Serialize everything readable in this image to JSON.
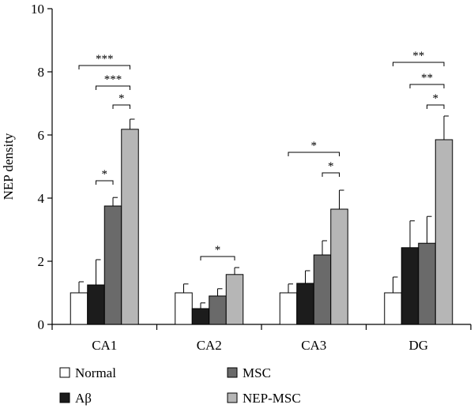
{
  "chart_data": {
    "type": "bar",
    "ylabel": "NEP density",
    "ylim": [
      0,
      10
    ],
    "yticks": [
      0,
      2,
      4,
      6,
      8,
      10
    ],
    "categories": [
      "CA1",
      "CA2",
      "CA3",
      "DG"
    ],
    "series": [
      {
        "name": "Normal",
        "color": "#ffffff",
        "values": [
          1.0,
          1.0,
          1.0,
          1.0
        ],
        "errors": [
          0.35,
          0.28,
          0.28,
          0.5
        ]
      },
      {
        "name": "Aβ",
        "color": "#1c1c1c",
        "values": [
          1.25,
          0.5,
          1.3,
          2.43
        ],
        "errors": [
          0.8,
          0.18,
          0.4,
          0.85
        ]
      },
      {
        "name": "MSC",
        "color": "#6a6a6a",
        "values": [
          3.75,
          0.9,
          2.2,
          2.57
        ],
        "errors": [
          0.27,
          0.23,
          0.45,
          0.85
        ]
      },
      {
        "name": "NEP-MSC",
        "color": "#b6b6b6",
        "values": [
          6.18,
          1.58,
          3.65,
          5.85
        ],
        "errors": [
          0.32,
          0.22,
          0.6,
          0.75
        ]
      }
    ],
    "significance": [
      {
        "category": "CA1",
        "from": "Aβ",
        "to": "MSC",
        "y": 4.55,
        "label": "*"
      },
      {
        "category": "CA1",
        "from": "MSC",
        "to": "NEP-MSC",
        "y": 6.95,
        "label": "*"
      },
      {
        "category": "CA1",
        "from": "Aβ",
        "to": "NEP-MSC",
        "y": 7.55,
        "label": "***"
      },
      {
        "category": "CA1",
        "from": "Normal",
        "to": "NEP-MSC",
        "y": 8.2,
        "label": "***"
      },
      {
        "category": "CA2",
        "from": "Aβ",
        "to": "NEP-MSC",
        "y": 2.15,
        "label": "*"
      },
      {
        "category": "CA3",
        "from": "MSC",
        "to": "NEP-MSC",
        "y": 4.8,
        "label": "*"
      },
      {
        "category": "CA3",
        "from": "Normal",
        "to": "NEP-MSC",
        "y": 5.45,
        "label": "*"
      },
      {
        "category": "DG",
        "from": "MSC",
        "to": "NEP-MSC",
        "y": 6.95,
        "label": "*"
      },
      {
        "category": "DG",
        "from": "Aβ",
        "to": "NEP-MSC",
        "y": 7.6,
        "label": "**"
      },
      {
        "category": "DG",
        "from": "Normal",
        "to": "NEP-MSC",
        "y": 8.3,
        "label": "**"
      }
    ],
    "legend_placement": "bottom",
    "grid": false
  }
}
